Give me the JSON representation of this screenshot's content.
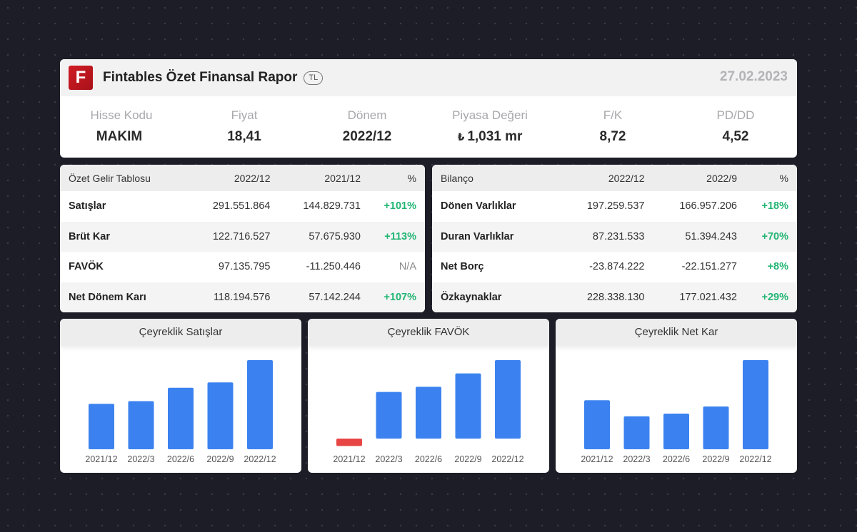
{
  "header": {
    "logo_letter": "F",
    "title": "Fintables Özet Finansal Rapor",
    "currency": "TL",
    "date": "27.02.2023",
    "stats": [
      {
        "label": "Hisse Kodu",
        "value": "MAKIM"
      },
      {
        "label": "Fiyat",
        "value": "18,41"
      },
      {
        "label": "Dönem",
        "value": "2022/12"
      },
      {
        "label": "Piyasa Değeri",
        "currency_symbol": "₺",
        "value": "1,031 mr"
      },
      {
        "label": "F/K",
        "value": "8,72"
      },
      {
        "label": "PD/DD",
        "value": "4,52"
      }
    ]
  },
  "income": {
    "headers": [
      "Özet Gelir Tablosu",
      "2022/12",
      "2021/12",
      "%"
    ],
    "rows": [
      {
        "label": "Satışlar",
        "v1": "291.551.864",
        "v2": "144.829.731",
        "pct": "+101%"
      },
      {
        "label": "Brüt Kar",
        "v1": "122.716.527",
        "v2": "57.675.930",
        "pct": "+113%"
      },
      {
        "label": "FAVÖK",
        "v1": "97.135.795",
        "v2": "-11.250.446",
        "pct": "N/A"
      },
      {
        "label": "Net Dönem Karı",
        "v1": "118.194.576",
        "v2": "57.142.244",
        "pct": "+107%"
      }
    ]
  },
  "balance": {
    "headers": [
      "Bilanço",
      "2022/12",
      "2022/9",
      "%"
    ],
    "rows": [
      {
        "label": "Dönen Varlıklar",
        "v1": "197.259.537",
        "v2": "166.957.206",
        "pct": "+18%"
      },
      {
        "label": "Duran Varlıklar",
        "v1": "87.231.533",
        "v2": "51.394.243",
        "pct": "+70%"
      },
      {
        "label": "Net Borç",
        "v1": "-23.874.222",
        "v2": "-22.151.277",
        "pct": "+8%"
      },
      {
        "label": "Özkaynaklar",
        "v1": "228.338.130",
        "v2": "177.021.432",
        "pct": "+29%"
      }
    ]
  },
  "colors": {
    "positive_bar": "#3b82f0",
    "negative_bar": "#e84545",
    "positive_pct": "#22b573",
    "brand": "#c8161e"
  },
  "chart_data": [
    {
      "type": "bar",
      "title": "Çeyreklik Satışlar",
      "categories": [
        "2021/12",
        "2022/3",
        "2022/6",
        "2022/9",
        "2022/12"
      ],
      "values": [
        51,
        54,
        69,
        75,
        100
      ],
      "ylim": [
        0,
        100
      ]
    },
    {
      "type": "bar",
      "title": "Çeyreklik FAVÖK",
      "categories": [
        "2021/12",
        "2022/3",
        "2022/6",
        "2022/9",
        "2022/12"
      ],
      "values": [
        -10,
        63,
        70,
        88,
        106
      ],
      "ylim": [
        -10,
        106
      ]
    },
    {
      "type": "bar",
      "title": "Çeyreklik Net Kar",
      "categories": [
        "2021/12",
        "2022/3",
        "2022/6",
        "2022/9",
        "2022/12"
      ],
      "values": [
        55,
        37,
        40,
        48,
        100
      ],
      "ylim": [
        0,
        100
      ]
    }
  ]
}
